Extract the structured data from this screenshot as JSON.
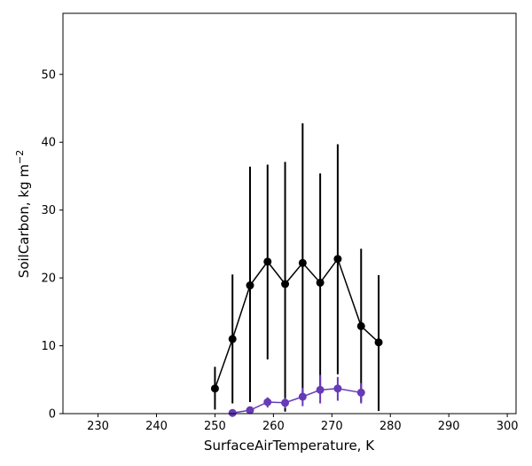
{
  "chart_data": {
    "type": "line",
    "xlabel": "SurfaceAirTemperature,  K",
    "ylabel": "SoilCarbon,  kg m",
    "ylabel_sup": "−2",
    "xlim": [
      224,
      301.5
    ],
    "ylim": [
      0,
      59
    ],
    "xticks": [
      230,
      240,
      250,
      260,
      270,
      280,
      290,
      300
    ],
    "yticks": [
      0,
      10,
      20,
      30,
      40,
      50
    ],
    "grid": false,
    "series": [
      {
        "color": "#000000",
        "x": [
          250,
          253,
          256,
          259,
          262,
          265,
          268,
          271,
          275,
          278
        ],
        "y": [
          3.7,
          11.0,
          18.9,
          22.4,
          19.1,
          22.2,
          19.3,
          22.8,
          12.9,
          10.5
        ],
        "err_low": [
          0.6,
          1.5,
          1.7,
          8.0,
          0.3,
          2.0,
          3.3,
          5.8,
          1.7,
          0.4
        ],
        "err_high": [
          6.9,
          20.5,
          36.4,
          36.7,
          37.1,
          42.8,
          35.4,
          39.7,
          24.3,
          20.4
        ]
      },
      {
        "color": "#673ab7",
        "x": [
          253,
          256,
          259,
          262,
          265,
          268,
          271,
          275
        ],
        "y": [
          0.1,
          0.5,
          1.7,
          1.6,
          2.5,
          3.5,
          3.7,
          3.1
        ],
        "err_low": [
          0.0,
          0.1,
          0.9,
          0.8,
          1.1,
          1.5,
          1.9,
          1.5
        ],
        "err_high": [
          0.3,
          0.9,
          2.4,
          2.3,
          3.8,
          5.7,
          5.4,
          4.5
        ]
      }
    ]
  }
}
